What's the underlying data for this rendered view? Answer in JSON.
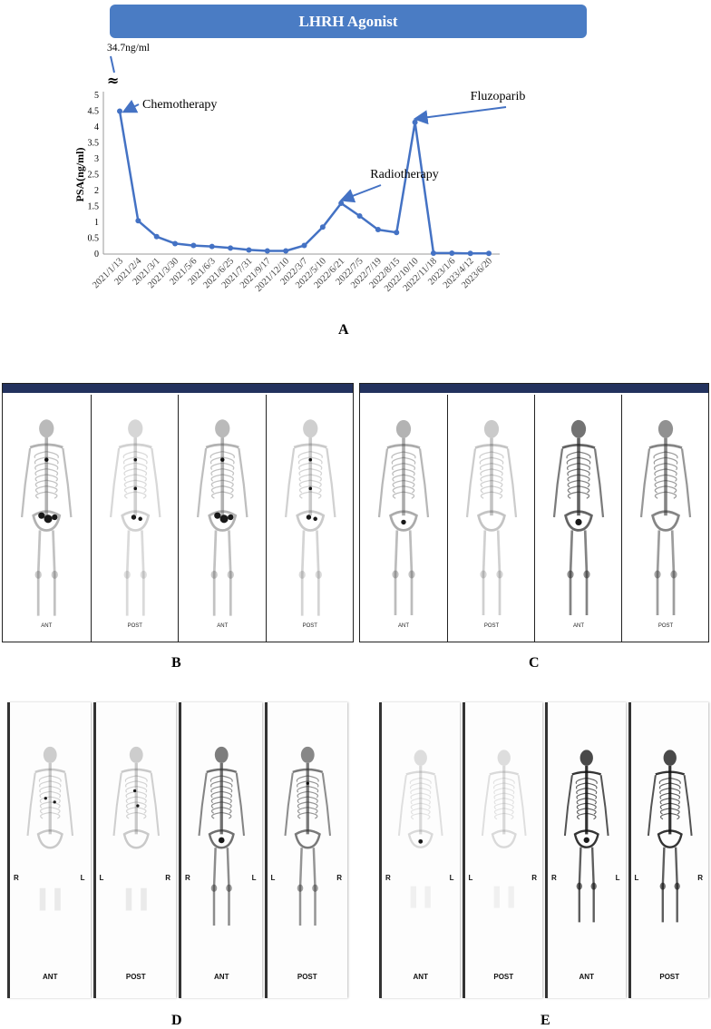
{
  "banner": {
    "label": "LHRH Agonist"
  },
  "chart_data": {
    "type": "line",
    "ylabel": "PSA(ng/ml)",
    "ylim": [
      0,
      5
    ],
    "yticks": [
      "0",
      "0.5",
      "1",
      "1.5",
      "2",
      "2.5",
      "3",
      "3.5",
      "4",
      "4.5",
      "5"
    ],
    "categories": [
      "2021/1/13",
      "2021/2/4",
      "2021/3/1",
      "2021/3/30",
      "2021/5/6",
      "2021/6/3",
      "2021/6/25",
      "2021/7/31",
      "2021/9/17",
      "2021/12/10",
      "2022/3/7",
      "2022/5/10",
      "2022/6/21",
      "2022/7/5",
      "2022/7/19",
      "2022/8/15",
      "2022/10/10",
      "2022/11/18",
      "2023/1/6",
      "2023/4/12",
      "2023/6/20"
    ],
    "series": [
      {
        "values": [
          4.5,
          1.05,
          0.55,
          0.33,
          0.27,
          0.24,
          0.19,
          0.13,
          0.1,
          0.1,
          0.27,
          0.85,
          1.6,
          1.2,
          0.77,
          0.68,
          4.15,
          0.03,
          0.03,
          0.02,
          0.02
        ]
      }
    ],
    "initial_value_label": "34.7ng/ml",
    "axis_break_symbol": "≈",
    "color": "#4472c4",
    "annotations": [
      {
        "text": "Chemotherapy",
        "category": "2021/1/13"
      },
      {
        "text": "Radiotherapy",
        "category": "2022/6/21"
      },
      {
        "text": "Fluzoparib",
        "category": "2022/10/10"
      }
    ],
    "grid": false
  },
  "panels": {
    "A": "A",
    "B": "B",
    "C": "C",
    "D": "D",
    "E": "E"
  },
  "scans": {
    "B": {
      "views": [
        "ANT",
        "POST",
        "ANT",
        "POST"
      ]
    },
    "C": {
      "views": [
        "ANT",
        "POST",
        "ANT",
        "POST"
      ]
    },
    "D": {
      "views": [
        "ANT",
        "POST",
        "ANT",
        "POST"
      ],
      "sides": [
        [
          "R",
          "L"
        ],
        [
          "L",
          "R"
        ],
        [
          "R",
          "L"
        ],
        [
          "L",
          "R"
        ]
      ]
    },
    "E": {
      "views": [
        "ANT",
        "POST",
        "ANT",
        "POST"
      ],
      "sides": [
        [
          "R",
          "L"
        ],
        [
          "L",
          "R"
        ],
        [
          "R",
          "L"
        ],
        [
          "L",
          "R"
        ]
      ]
    }
  }
}
